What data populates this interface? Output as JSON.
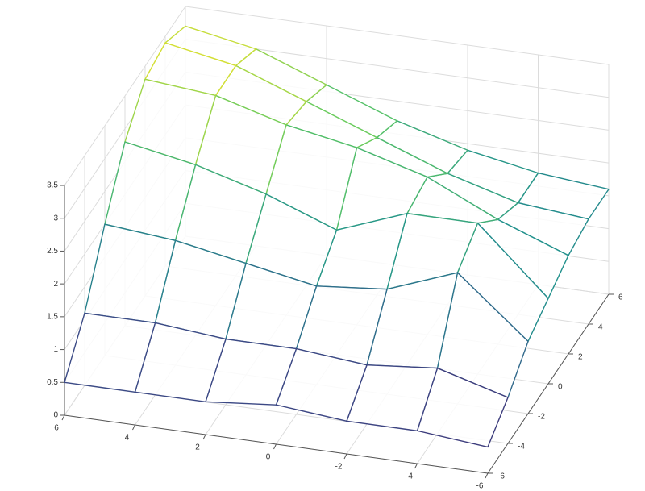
{
  "chart_data": {
    "type": "mesh",
    "x": [
      -6,
      -4,
      -2,
      0,
      2,
      4,
      6
    ],
    "y": [
      -6,
      -4,
      -2,
      0,
      2,
      4,
      6
    ],
    "z": [
      [
        0.4,
        0.5,
        0.5,
        0.6,
        0.5,
        0.5,
        0.5
      ],
      [
        0.7,
        1.0,
        0.9,
        1.0,
        1.0,
        1.1,
        1.1
      ],
      [
        1.1,
        2.0,
        1.6,
        1.5,
        1.7,
        1.9,
        2.0
      ],
      [
        1.3,
        2.3,
        2.3,
        1.9,
        2.3,
        2.6,
        2.8
      ],
      [
        1.5,
        1.9,
        2.4,
        2.7,
        2.9,
        3.2,
        3.3
      ],
      [
        1.6,
        1.7,
        2.0,
        2.4,
        2.8,
        3.2,
        3.4
      ],
      [
        1.6,
        1.7,
        1.9,
        2.2,
        2.6,
        3.0,
        3.2
      ]
    ],
    "xlim": [
      -6,
      6
    ],
    "ylim": [
      -6,
      6
    ],
    "zlim": [
      0,
      3.5
    ],
    "xticks": [
      -6,
      -4,
      -2,
      0,
      2,
      4,
      6
    ],
    "yticks": [
      -6,
      -4,
      -2,
      0,
      2,
      4,
      6
    ],
    "zticks": [
      0,
      0.5,
      1,
      1.5,
      2,
      2.5,
      3,
      3.5
    ],
    "colormap": [
      "#440154",
      "#3b528b",
      "#21918c",
      "#5ec962",
      "#fde725"
    ],
    "grid": true
  }
}
